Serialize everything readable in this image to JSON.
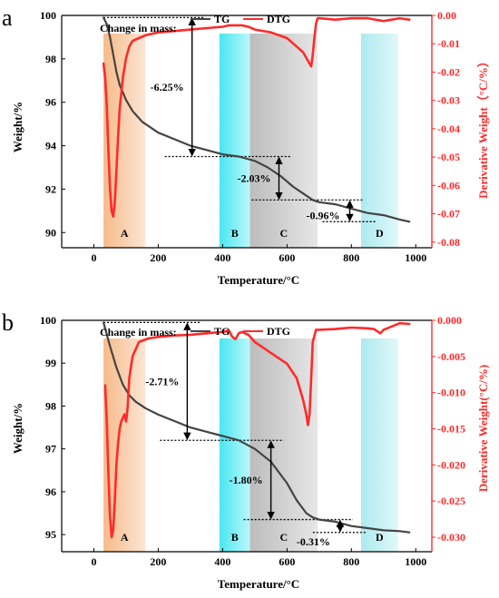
{
  "chart_data": [
    {
      "type": "line",
      "panel": "a",
      "xlabel": "Temperature/°C",
      "ylabel": "Weight/%",
      "y2label": "Derivative Weight（°C/%）",
      "xlim": [
        -100,
        1050
      ],
      "ylim": [
        89.3,
        100
      ],
      "y2lim": [
        -0.082,
        0
      ],
      "xticks": [
        "0",
        "200",
        "400",
        "600",
        "800",
        "1000"
      ],
      "yticks": [
        "90",
        "92",
        "94",
        "96",
        "98",
        "100"
      ],
      "y2ticks": [
        "0.00",
        "-0.01",
        "-0.02",
        "-0.03",
        "-0.04",
        "-0.05",
        "-0.06",
        "-0.07",
        "-0.08"
      ],
      "series": [
        {
          "name": "TG",
          "axis": "left",
          "color": "#444444",
          "x": [
            30,
            40,
            50,
            60,
            70,
            80,
            100,
            120,
            150,
            200,
            250,
            300,
            350,
            400,
            450,
            500,
            540,
            580,
            620,
            650,
            680,
            700,
            750,
            800,
            850,
            900,
            950,
            980
          ],
          "y": [
            99.9,
            99.6,
            99.0,
            98.2,
            97.4,
            96.8,
            96.1,
            95.6,
            95.1,
            94.6,
            94.3,
            94.0,
            93.8,
            93.6,
            93.5,
            93.3,
            93.0,
            92.6,
            92.1,
            91.8,
            91.5,
            91.4,
            91.3,
            91.1,
            90.9,
            90.8,
            90.6,
            90.5
          ]
        },
        {
          "name": "DTG",
          "axis": "right",
          "color": "#ff2a2a",
          "x": [
            30,
            35,
            40,
            45,
            50,
            55,
            60,
            65,
            70,
            75,
            80,
            90,
            100,
            110,
            120,
            140,
            160,
            200,
            250,
            300,
            350,
            400,
            420,
            440,
            460,
            480,
            500,
            550,
            600,
            630,
            650,
            665,
            675,
            680,
            685,
            690,
            695,
            700,
            750,
            800,
            850,
            900,
            950,
            980
          ],
          "y": [
            -0.017,
            -0.022,
            -0.032,
            -0.047,
            -0.061,
            -0.069,
            -0.071,
            -0.066,
            -0.055,
            -0.043,
            -0.033,
            -0.022,
            -0.015,
            -0.011,
            -0.009,
            -0.008,
            -0.007,
            -0.006,
            -0.0055,
            -0.005,
            -0.0045,
            -0.004,
            -0.0035,
            -0.0035,
            -0.0035,
            -0.004,
            -0.005,
            -0.006,
            -0.008,
            -0.011,
            -0.013,
            -0.016,
            -0.018,
            -0.014,
            -0.008,
            -0.003,
            -0.001,
            -0.001,
            -0.0015,
            -0.001,
            -0.001,
            -0.002,
            -0.001,
            -0.0015
          ]
        }
      ],
      "regions": [
        {
          "label": "A",
          "from": 30,
          "to": 160,
          "color": "#f6b784"
        },
        {
          "label": "B",
          "from": 390,
          "to": 485,
          "color": "#3ee6f0"
        },
        {
          "label": "C",
          "from": 485,
          "to": 695,
          "color": "#b9b9b9"
        },
        {
          "label": "D",
          "from": 830,
          "to": 945,
          "color": "#a8e9ee"
        }
      ],
      "annotations": {
        "change_label": "Change in mass:",
        "steps": [
          {
            "text": "-6.25%",
            "x": 305,
            "from": 99.9,
            "to": 93.5
          },
          {
            "text": "-2.03%",
            "x": 575,
            "from": 93.5,
            "to": 91.5
          },
          {
            "text": "-0.96%",
            "x": 795,
            "from": 91.5,
            "to": 90.5
          }
        ]
      }
    },
    {
      "type": "line",
      "panel": "b",
      "xlabel": "Temperature/°C",
      "ylabel": "Weight/%",
      "y2label": "Derivative Weight(°C/%)",
      "xlim": [
        -100,
        1050
      ],
      "ylim": [
        94.6,
        100
      ],
      "y2lim": [
        -0.032,
        0
      ],
      "xticks": [
        "0",
        "200",
        "400",
        "600",
        "800",
        "1000"
      ],
      "yticks": [
        "95",
        "96",
        "97",
        "98",
        "99",
        "100"
      ],
      "y2ticks": [
        "0.000",
        "-0.005",
        "-0.010",
        "-0.015",
        "-0.020",
        "-0.025",
        "-0.030"
      ],
      "series": [
        {
          "name": "TG",
          "axis": "left",
          "color": "#444444",
          "x": [
            30,
            50,
            70,
            90,
            110,
            130,
            160,
            200,
            250,
            300,
            350,
            400,
            450,
            500,
            550,
            600,
            630,
            660,
            680,
            700,
            750,
            800,
            850,
            900,
            950,
            980
          ],
          "y": [
            99.95,
            99.4,
            98.9,
            98.5,
            98.25,
            98.1,
            97.95,
            97.8,
            97.65,
            97.5,
            97.4,
            97.3,
            97.2,
            97.0,
            96.7,
            96.2,
            95.8,
            95.5,
            95.4,
            95.35,
            95.3,
            95.2,
            95.15,
            95.1,
            95.08,
            95.05
          ]
        },
        {
          "name": "DTG",
          "axis": "right",
          "color": "#ff2a2a",
          "x": [
            35,
            40,
            45,
            50,
            55,
            60,
            65,
            70,
            75,
            80,
            85,
            90,
            95,
            100,
            105,
            110,
            120,
            140,
            170,
            200,
            250,
            300,
            350,
            400,
            420,
            430,
            440,
            450,
            460,
            480,
            500,
            550,
            600,
            630,
            650,
            660,
            665,
            670,
            675,
            680,
            690,
            700,
            750,
            800,
            850,
            870,
            890,
            900,
            950,
            980
          ],
          "y": [
            -0.009,
            -0.014,
            -0.021,
            -0.027,
            -0.03,
            -0.029,
            -0.025,
            -0.02,
            -0.017,
            -0.015,
            -0.014,
            -0.0135,
            -0.013,
            -0.014,
            -0.012,
            -0.008,
            -0.005,
            -0.003,
            -0.0025,
            -0.0023,
            -0.0021,
            -0.002,
            -0.0018,
            -0.0016,
            -0.0014,
            -0.0023,
            -0.0026,
            -0.0018,
            -0.0016,
            -0.002,
            -0.003,
            -0.0045,
            -0.006,
            -0.008,
            -0.011,
            -0.013,
            -0.0145,
            -0.013,
            -0.008,
            -0.003,
            -0.0013,
            -0.0013,
            -0.0012,
            -0.001,
            -0.0011,
            -0.0012,
            -0.0018,
            -0.0013,
            -0.0004,
            -0.0005
          ]
        }
      ],
      "regions": [
        {
          "label": "A",
          "from": 30,
          "to": 160,
          "color": "#f6b784"
        },
        {
          "label": "B",
          "from": 390,
          "to": 485,
          "color": "#3ee6f0"
        },
        {
          "label": "C",
          "from": 485,
          "to": 695,
          "color": "#b9b9b9"
        },
        {
          "label": "D",
          "from": 830,
          "to": 945,
          "color": "#a8e9ee"
        }
      ],
      "annotations": {
        "change_label": "Change in mass:",
        "steps": [
          {
            "text": "-2.71%",
            "x": 290,
            "from": 99.95,
            "to": 97.2
          },
          {
            "text": "-1.80%",
            "x": 550,
            "from": 97.2,
            "to": 95.35
          },
          {
            "text": "-0.31%",
            "x": 765,
            "from": 95.35,
            "to": 95.05
          }
        ]
      }
    }
  ]
}
